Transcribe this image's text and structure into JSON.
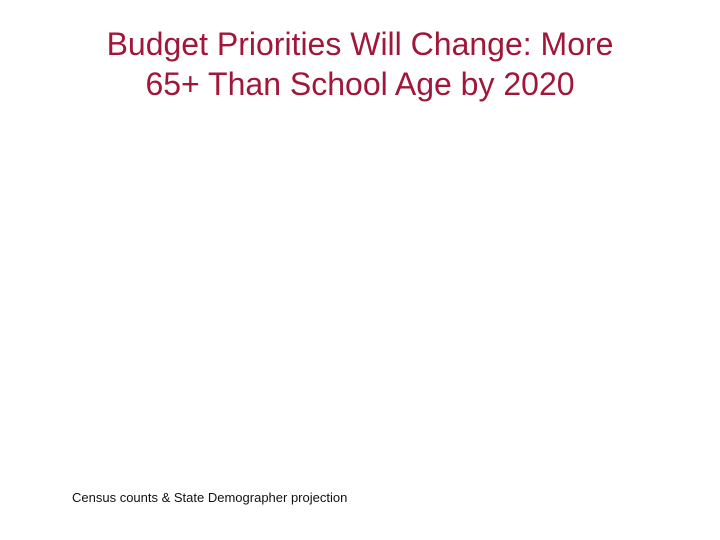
{
  "slide": {
    "title_lines": [
      "Budget Priorities Will Change: More",
      "65+ Than School Age by 2020"
    ],
    "source": "Census counts & State Demographer projection"
  }
}
